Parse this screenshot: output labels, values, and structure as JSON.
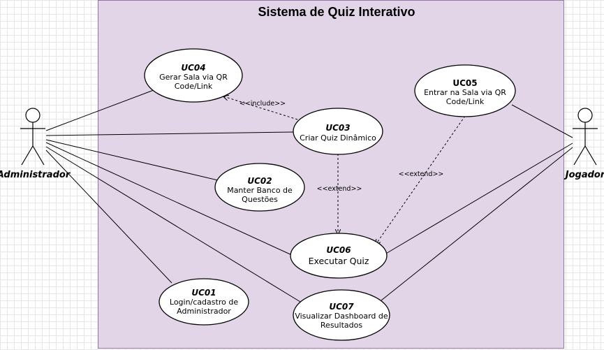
{
  "system": {
    "title": "Sistema de Quiz Interativo"
  },
  "actors": {
    "admin": {
      "name": "Administrador"
    },
    "player": {
      "name": "Jogador"
    }
  },
  "use_cases": {
    "uc01": {
      "id": "UC01",
      "lines": [
        "Login/cadastro de",
        "Administrador"
      ]
    },
    "uc02": {
      "id": "UC02",
      "lines": [
        "Manter Banco de",
        "Questões"
      ]
    },
    "uc03": {
      "id": "UC03",
      "lines": [
        "Criar Quiz Dinâmico"
      ]
    },
    "uc04": {
      "id": "UC04",
      "lines": [
        "Gerar Sala via QR",
        "Code/Link"
      ]
    },
    "uc05": {
      "id": "UC05",
      "lines": [
        "Entrar na Sala via QR",
        "Code/Link"
      ]
    },
    "uc06": {
      "id": "UC06",
      "lines": [
        "Executar Quiz"
      ]
    },
    "uc07": {
      "id": "UC07",
      "lines": [
        "Visualizar Dashboard de",
        "Resultados"
      ]
    }
  },
  "relationships": {
    "include_label": "<<include>>",
    "extend_label_1": "<<extend>>",
    "extend_label_2": "<<extend>>"
  }
}
